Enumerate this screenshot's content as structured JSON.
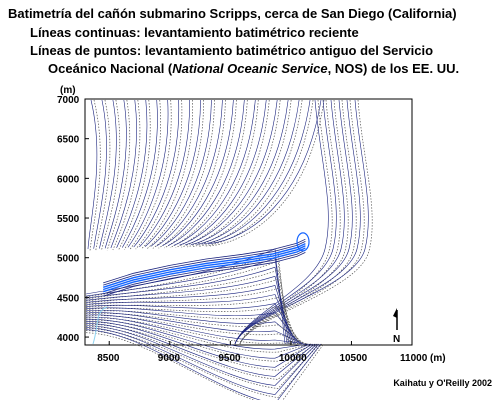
{
  "header": {
    "title": "Batimetría del cañón submarino Scripps, cerca de San Diego (California)",
    "line1": "Líneas continuas: levantamiento batimétrico reciente",
    "line2": "Líneas de puntos: levantamiento batimétrico antiguo del Servicio",
    "line3_prefix": "Oceánico Nacional (",
    "line3_italic": "National Oceanic Service",
    "line3_suffix": ", NOS) de los EE. UU."
  },
  "chart_data": {
    "type": "contour",
    "x_unit": "(m)",
    "y_unit": "(m)",
    "xlim": [
      8300,
      11000
    ],
    "ylim": [
      3900,
      7000
    ],
    "x_ticks": [
      8500,
      9000,
      9500,
      10000,
      10500,
      11000
    ],
    "y_ticks": [
      4000,
      4500,
      5000,
      5500,
      6000,
      6500,
      7000
    ],
    "x_tick_labels": [
      "8500",
      "9000",
      "9500",
      "10000",
      "10500",
      "11000 (m)"
    ],
    "y_tick_labels": [
      "4000",
      "4500",
      "5000",
      "5500",
      "6000",
      "6500",
      "7000"
    ],
    "series": [
      {
        "style": "solid",
        "color": "#1a237e"
      },
      {
        "style": "dotted",
        "color": "#555555"
      }
    ],
    "canyon_axis": {
      "x": [
        8450,
        8700,
        9000,
        9300,
        9600,
        9850,
        10050,
        10120
      ],
      "y": [
        4600,
        4720,
        4820,
        4900,
        4960,
        5020,
        5100,
        5150
      ]
    },
    "north_arrow_label": "N"
  },
  "credit": "Kaihatu y O'Reilly 2002"
}
